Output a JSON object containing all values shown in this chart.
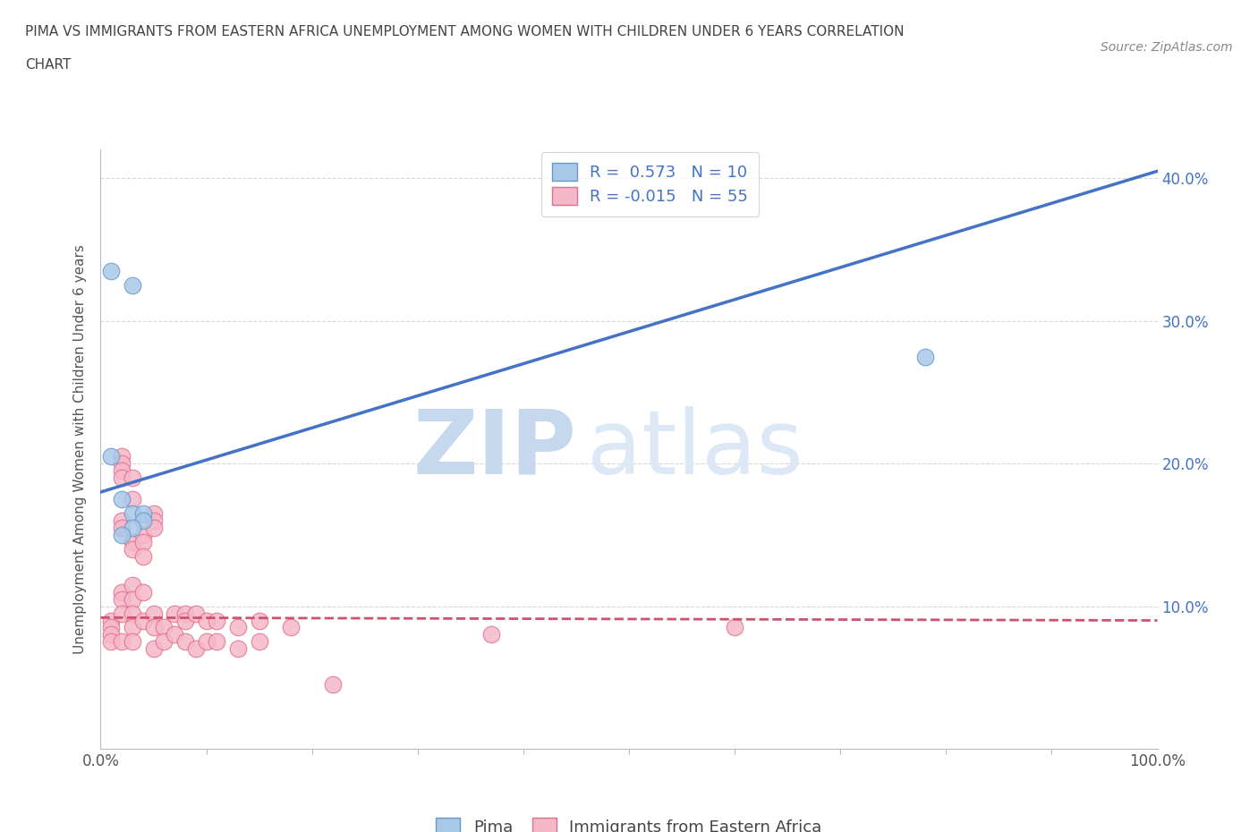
{
  "title_line1": "PIMA VS IMMIGRANTS FROM EASTERN AFRICA UNEMPLOYMENT AMONG WOMEN WITH CHILDREN UNDER 6 YEARS CORRELATION",
  "title_line2": "CHART",
  "source": "Source: ZipAtlas.com",
  "ylabel": "Unemployment Among Women with Children Under 6 years",
  "xlim": [
    0,
    100
  ],
  "ylim": [
    0,
    42
  ],
  "yticks": [
    0,
    10,
    20,
    30,
    40
  ],
  "ytick_labels": [
    "",
    "10.0%",
    "20.0%",
    "30.0%",
    "40.0%"
  ],
  "pima_color": "#a8c8e8",
  "pima_edge_color": "#6699cc",
  "immigrants_color": "#f5b8c8",
  "immigrants_edge_color": "#e07090",
  "trend_pima_color": "#4472c4",
  "trend_immigrants_color": "#d05070",
  "watermark_top": "ZIP",
  "watermark_bot": "atlas",
  "legend_R_pima": " 0.573",
  "legend_N_pima": "10",
  "legend_R_immigrants": "-0.015",
  "legend_N_immigrants": "55",
  "pima_trend_x0": 0,
  "pima_trend_y0": 18.0,
  "pima_trend_x1": 100,
  "pima_trend_y1": 40.5,
  "imm_trend_x0": 0,
  "imm_trend_y0": 9.2,
  "imm_trend_x1": 100,
  "imm_trend_y1": 9.0,
  "pima_x": [
    1,
    3,
    1,
    2,
    3,
    4,
    4,
    3,
    78,
    2
  ],
  "pima_y": [
    33.5,
    32.5,
    20.5,
    17.5,
    16.5,
    16.5,
    16.0,
    15.5,
    27.5,
    15.0
  ],
  "immigrants_x": [
    1,
    1,
    1,
    1,
    2,
    2,
    2,
    2,
    2,
    2,
    2,
    2,
    2,
    2,
    3,
    3,
    3,
    3,
    3,
    3,
    3,
    3,
    3,
    4,
    4,
    4,
    4,
    4,
    5,
    5,
    5,
    5,
    5,
    5,
    6,
    6,
    7,
    7,
    8,
    8,
    8,
    9,
    9,
    10,
    10,
    11,
    11,
    13,
    13,
    15,
    15,
    18,
    22,
    37,
    60
  ],
  "immigrants_y": [
    9.0,
    8.5,
    8.0,
    7.5,
    20.5,
    20.0,
    19.5,
    19.0,
    16.0,
    15.5,
    11.0,
    10.5,
    9.5,
    7.5,
    19.0,
    17.5,
    14.5,
    14.0,
    11.5,
    10.5,
    9.5,
    8.5,
    7.5,
    15.0,
    14.5,
    13.5,
    11.0,
    9.0,
    16.5,
    16.0,
    15.5,
    9.5,
    8.5,
    7.0,
    8.5,
    7.5,
    9.5,
    8.0,
    9.5,
    9.0,
    7.5,
    9.5,
    7.0,
    9.0,
    7.5,
    9.0,
    7.5,
    8.5,
    7.0,
    9.0,
    7.5,
    8.5,
    4.5,
    8.0,
    8.5
  ],
  "background_color": "#ffffff",
  "grid_color": "#d8d8d8",
  "marker_size": 180
}
